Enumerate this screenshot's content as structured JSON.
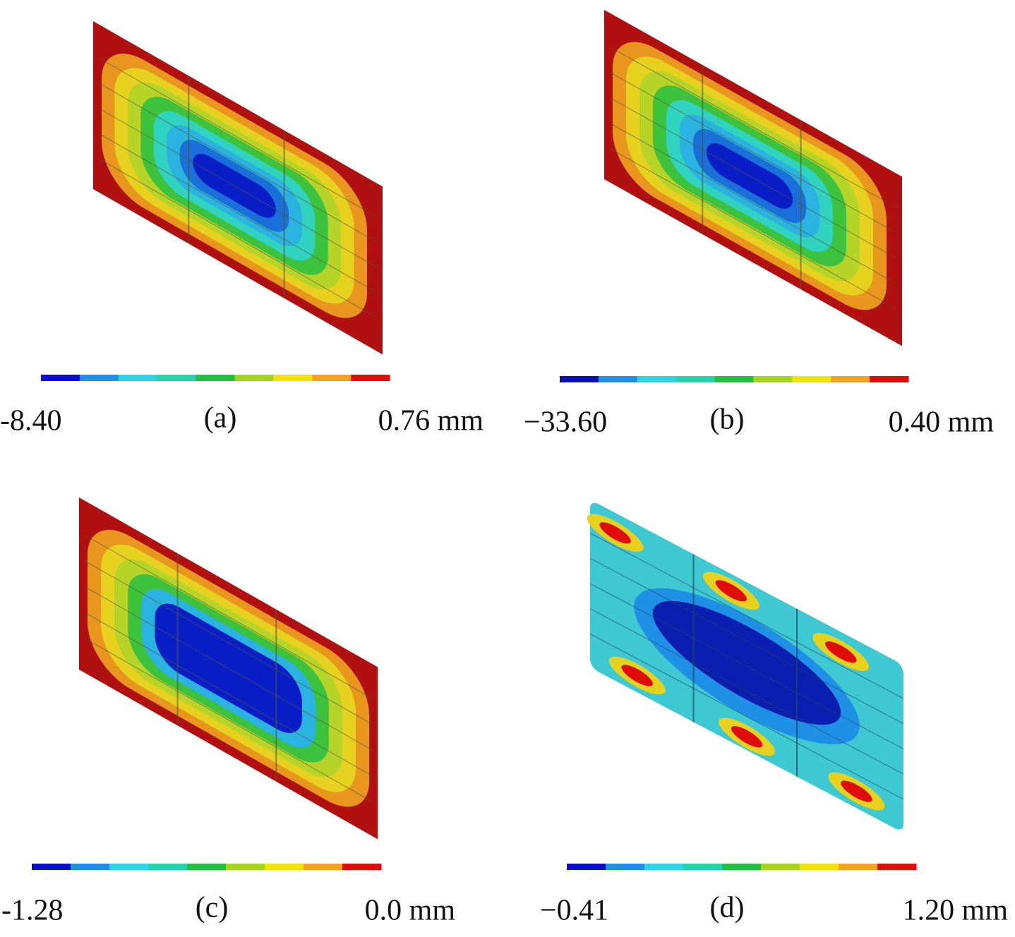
{
  "panels": [
    {
      "label": "(a)",
      "min": "-8.40",
      "max": "0.76 mm"
    },
    {
      "label": "(b)",
      "min": "−33.60",
      "max": "0.40 mm"
    },
    {
      "label": "(c)",
      "min": "-1.28",
      "max": "0.0 mm"
    },
    {
      "label": "(d)",
      "min": "−0.41",
      "max": "1.20 mm"
    }
  ]
}
